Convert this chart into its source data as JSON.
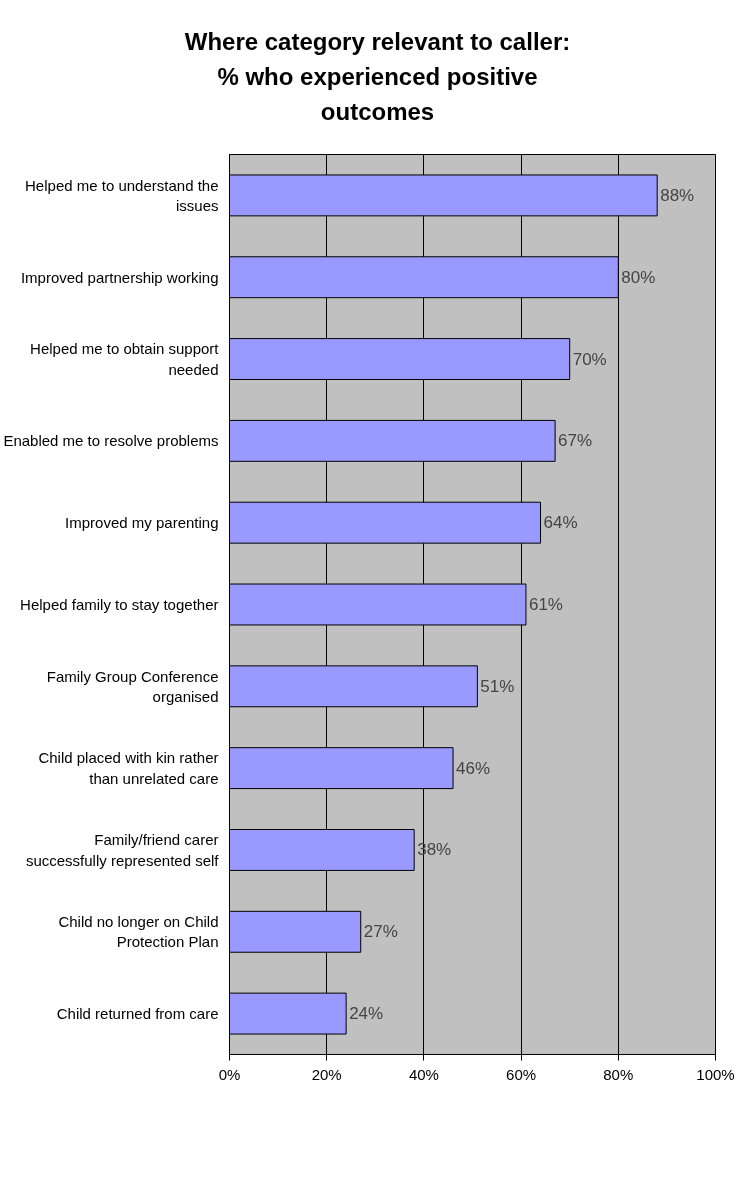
{
  "chart_data": {
    "type": "bar",
    "orientation": "horizontal",
    "title": "Where category relevant to caller: % who experienced positive outcomes",
    "categories": [
      "Helped me to understand the issues",
      "Improved partnership working",
      "Helped me to obtain support needed",
      "Enabled me to resolve problems",
      "Improved my parenting",
      "Helped family to stay together",
      "Family Group Conference organised",
      "Child placed with kin rather than unrelated care",
      "Family/friend carer successfully represented self",
      "Child no longer on Child Protection Plan",
      "Child returned from care"
    ],
    "values": [
      88,
      80,
      70,
      67,
      64,
      61,
      51,
      46,
      38,
      27,
      24
    ],
    "value_labels": [
      "88%",
      "80%",
      "70%",
      "67%",
      "64%",
      "61%",
      "51%",
      "46%",
      "38%",
      "27%",
      "24%"
    ],
    "color": "#9999ff",
    "xlim": [
      0,
      100
    ],
    "xticks": [
      {
        "value": 0,
        "label": "0%"
      },
      {
        "value": 20,
        "label": "20%"
      },
      {
        "value": 40,
        "label": "40%"
      },
      {
        "value": 60,
        "label": "60%"
      },
      {
        "value": 80,
        "label": "80%"
      },
      {
        "value": 100,
        "label": "100%"
      }
    ],
    "grid": "x"
  }
}
